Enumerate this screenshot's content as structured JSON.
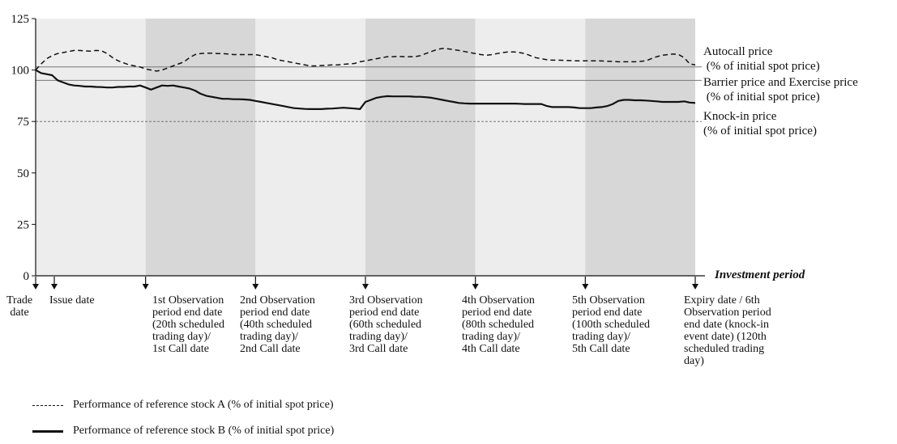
{
  "chart_data": {
    "type": "line",
    "ylim": [
      0,
      125
    ],
    "y_ticks": [
      "0",
      "25",
      "50",
      "75",
      "100",
      "125"
    ],
    "x_axis_label": "Investment period",
    "period_days": 120,
    "shaded_periods": [
      {
        "from": 0,
        "to": 20,
        "shade": "light"
      },
      {
        "from": 20,
        "to": 40,
        "shade": "dark"
      },
      {
        "from": 40,
        "to": 60,
        "shade": "light"
      },
      {
        "from": 60,
        "to": 80,
        "shade": "dark"
      },
      {
        "from": 80,
        "to": 100,
        "shade": "light"
      },
      {
        "from": 100,
        "to": 120,
        "shade": "dark"
      }
    ],
    "reference_lines": [
      {
        "key": "autocall",
        "value": 101.5,
        "style": "solid",
        "label_lines": [
          "Autocall price",
          " (% of initial spot price)"
        ]
      },
      {
        "key": "barrier",
        "value": 95,
        "style": "solid",
        "label_lines": [
          "Barrier price and Exercise price",
          " (% of initial spot price)"
        ]
      },
      {
        "key": "knockin",
        "value": 75,
        "style": "dotted",
        "label_lines": [
          "Knock-in price",
          "(% of initial spot price)"
        ]
      }
    ],
    "series": [
      {
        "name": "Performance of reference stock A (% of initial spot price)",
        "style": "dashed",
        "x": [
          0,
          1,
          2,
          3,
          4,
          5,
          6,
          7,
          8,
          9,
          10,
          11,
          12,
          13,
          14,
          15,
          16,
          17,
          18,
          19,
          20,
          21,
          22,
          23,
          24,
          25,
          26,
          27,
          28,
          29,
          30,
          31,
          32,
          33,
          34,
          35,
          36,
          37,
          38,
          39,
          40,
          41,
          42,
          43,
          44,
          45,
          46,
          47,
          48,
          49,
          50,
          51,
          52,
          53,
          54,
          55,
          56,
          57,
          58,
          59,
          60,
          61,
          62,
          63,
          64,
          65,
          66,
          67,
          68,
          69,
          70,
          71,
          72,
          73,
          74,
          75,
          76,
          77,
          78,
          79,
          80,
          81,
          82,
          83,
          84,
          85,
          86,
          87,
          88,
          89,
          90,
          91,
          92,
          93,
          94,
          95,
          96,
          97,
          98,
          99,
          100,
          101,
          102,
          103,
          104,
          105,
          106,
          107,
          108,
          109,
          110,
          111,
          112,
          113,
          114,
          115,
          116,
          117,
          118,
          119,
          120
        ],
        "values": [
          100,
          103,
          105.5,
          107,
          108,
          108.5,
          109,
          109.5,
          109.5,
          109.3,
          109.2,
          109.5,
          109.3,
          108,
          106,
          104.5,
          103.5,
          102.5,
          102,
          101.5,
          100.5,
          100,
          99.5,
          100,
          101,
          102,
          103,
          104,
          106,
          107.5,
          108,
          108.2,
          108.2,
          108,
          108,
          107.8,
          107.5,
          107.5,
          107.5,
          107.5,
          107.5,
          107,
          106.5,
          106,
          105,
          104.5,
          104,
          103.5,
          103,
          102.5,
          102,
          102,
          102.2,
          102.3,
          102.5,
          102.5,
          102.8,
          103,
          103.2,
          104,
          104.5,
          105,
          105.5,
          106,
          106.5,
          106.5,
          106.7,
          106.5,
          106.5,
          106.5,
          107,
          108,
          109,
          110,
          110.5,
          110.3,
          110,
          109.5,
          109,
          108.5,
          108,
          107.5,
          107.2,
          107.5,
          108,
          108.5,
          108.8,
          108.8,
          108.5,
          108,
          107,
          106,
          105.5,
          105,
          104.8,
          104.8,
          104.7,
          104.6,
          104.5,
          104.5,
          104.5,
          104.5,
          104.5,
          104.4,
          104.3,
          104.2,
          104,
          104,
          104,
          104,
          104.2,
          104.5,
          105.5,
          106.5,
          107.2,
          107.5,
          107.8,
          107.5,
          106,
          103,
          102.5
        ]
      },
      {
        "name": "Performance of reference stock B (% of initial spot price)",
        "style": "solid",
        "x": [
          0,
          1,
          2,
          3,
          4,
          5,
          6,
          7,
          8,
          9,
          10,
          11,
          12,
          13,
          14,
          15,
          16,
          17,
          18,
          19,
          20,
          21,
          22,
          23,
          24,
          25,
          26,
          27,
          28,
          29,
          30,
          31,
          32,
          33,
          34,
          35,
          36,
          37,
          38,
          39,
          40,
          41,
          42,
          43,
          44,
          45,
          46,
          47,
          48,
          49,
          50,
          51,
          52,
          53,
          54,
          55,
          56,
          57,
          58,
          59,
          60,
          61,
          62,
          63,
          64,
          65,
          66,
          67,
          68,
          69,
          70,
          71,
          72,
          73,
          74,
          75,
          76,
          77,
          78,
          79,
          80,
          81,
          82,
          83,
          84,
          85,
          86,
          87,
          88,
          89,
          90,
          91,
          92,
          93,
          94,
          95,
          96,
          97,
          98,
          99,
          100,
          101,
          102,
          103,
          104,
          105,
          106,
          107,
          108,
          109,
          110,
          111,
          112,
          113,
          114,
          115,
          116,
          117,
          118,
          119,
          120
        ],
        "values": [
          100,
          98.5,
          98,
          97.5,
          95,
          94,
          93,
          92.5,
          92.3,
          92,
          92,
          91.8,
          91.7,
          91.5,
          91.5,
          91.8,
          91.8,
          92,
          92,
          92.5,
          91.5,
          90.5,
          91.5,
          92.5,
          92.3,
          92.5,
          92,
          91.5,
          91,
          90,
          88.5,
          87.5,
          87,
          86.5,
          86,
          86,
          85.8,
          85.8,
          85.7,
          85.5,
          85,
          84.5,
          84,
          83.5,
          83,
          82.5,
          82,
          81.5,
          81.3,
          81.1,
          81,
          81,
          81,
          81.2,
          81.3,
          81.5,
          81.7,
          81.5,
          81.3,
          81,
          84.5,
          85.5,
          86.5,
          87,
          87.3,
          87.2,
          87.2,
          87.2,
          87.2,
          87,
          87,
          86.8,
          86.5,
          86,
          85.5,
          85,
          84.5,
          84,
          83.8,
          83.7,
          83.7,
          83.7,
          83.7,
          83.7,
          83.7,
          83.7,
          83.7,
          83.7,
          83.6,
          83.5,
          83.5,
          83.5,
          83.5,
          82.5,
          82,
          82,
          82,
          82,
          81.8,
          81.5,
          81.5,
          81.5,
          81.8,
          82,
          82.5,
          83.5,
          85,
          85.5,
          85.5,
          85.3,
          85.3,
          85.2,
          85,
          84.8,
          84.5,
          84.5,
          84.5,
          84.5,
          84.8,
          84.2,
          84
        ]
      }
    ],
    "event_markers": [
      {
        "x": 0,
        "label": "Trade\ndate"
      },
      {
        "x": 2,
        "label": "Issue date"
      },
      {
        "x": 20,
        "label": "1st Observation\nperiod end date\n(20th scheduled\ntrading day)/\n1st Call date"
      },
      {
        "x": 40,
        "label": "2nd Observation\nperiod end date\n(40th scheduled\ntrading day)/\n2nd Call date"
      },
      {
        "x": 60,
        "label": "3rd Observation\nperiod end date\n(60th scheduled\ntrading day)/\n3rd Call date"
      },
      {
        "x": 80,
        "label": "4th Observation\nperiod end date\n(80th scheduled\ntrading day)/\n4th Call date"
      },
      {
        "x": 100,
        "label": "5th Observation\nperiod end date\n (100th scheduled\n trading day)/\n5th Call date"
      },
      {
        "x": 120,
        "label": "Expiry date / 6th\nObservation period\nend date (knock-in\nevent date) (120th\nscheduled trading\nday)"
      }
    ],
    "legend_placement": "bottom-left",
    "grid": false
  },
  "colors": {
    "light_band": "#ededed",
    "dark_band": "#d7d7d7",
    "line": "#111111",
    "ref_line": "#777777"
  }
}
